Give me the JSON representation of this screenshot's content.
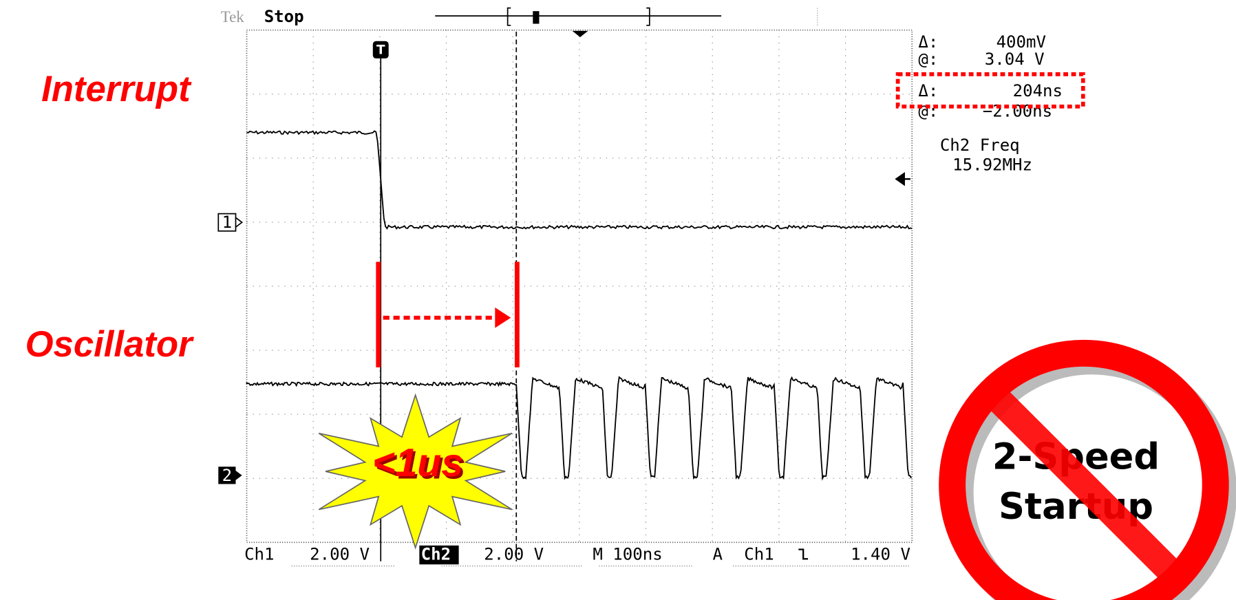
{
  "labels": {
    "interrupt": "Interrupt",
    "oscillator": "Oscillator"
  },
  "scope": {
    "brand": "Tek",
    "status": "Stop",
    "trigger_marker": "T",
    "readouts": [
      {
        "symbol": "Δ:",
        "value": "400mV"
      },
      {
        "symbol": "@:",
        "value": "3.04 V"
      },
      {
        "symbol": "Δ:",
        "value": "204ns"
      },
      {
        "symbol": "@:",
        "value": "−2.00ns"
      }
    ],
    "measurement": {
      "name": "Ch2 Freq",
      "value": "15.92MHz"
    },
    "channel_markers": [
      "1",
      "2"
    ],
    "footer": {
      "ch1": "Ch1",
      "ch1_scale": "2.00 V",
      "ch2": "Ch2",
      "ch2_scale": "2.00 V",
      "timebase": "M 100ns",
      "trigger_mode": "A",
      "trigger_source": "Ch1",
      "trigger_level": "1.40 V"
    }
  },
  "callout": "<1us",
  "badge": {
    "line1": "2-Speed",
    "line2": "Startup"
  }
}
